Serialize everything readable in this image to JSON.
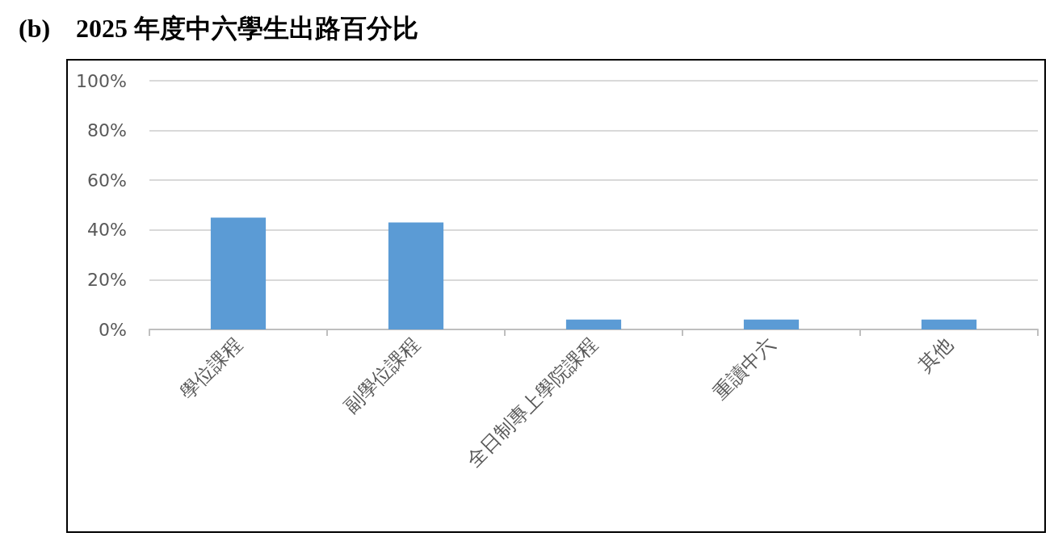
{
  "chart_data": {
    "type": "bar",
    "title": "(b)    2025 年度中六學生出路百分比",
    "categories": [
      "學位課程",
      "副學位課程",
      "全日制專上學院課程",
      "重讀中六",
      "其他"
    ],
    "values": [
      45,
      43,
      4,
      4,
      4
    ],
    "color": "#5b9bd5",
    "ylim": [
      0,
      100
    ],
    "yticks": [
      {
        "value": 0,
        "label": "0%"
      },
      {
        "value": 20,
        "label": "20%"
      },
      {
        "value": 40,
        "label": "40%"
      },
      {
        "value": 60,
        "label": "60%"
      },
      {
        "value": 80,
        "label": "80%"
      },
      {
        "value": 100,
        "label": "100%"
      }
    ],
    "grid": "y"
  }
}
